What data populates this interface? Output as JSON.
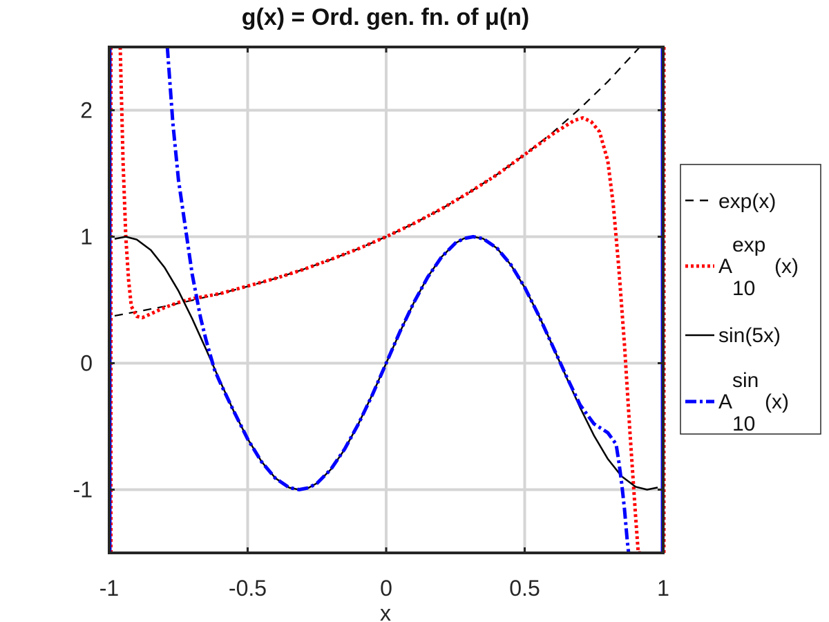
{
  "chart_data": {
    "type": "line",
    "title": "g(x) = Ord. gen. fn. of μ(n)",
    "xlabel": "x",
    "ylabel": "",
    "xlim": [
      -1,
      1
    ],
    "ylim": [
      -1.5,
      2.5
    ],
    "xticks": [
      -1,
      -0.5,
      0,
      0.5,
      1
    ],
    "xtick_labels": [
      "-1",
      "-0.5",
      "0",
      "0.5",
      "1"
    ],
    "yticks": [
      -1,
      0,
      1,
      2
    ],
    "ytick_labels": [
      "-1",
      "0",
      "1",
      "2"
    ],
    "grid": true,
    "legend_position": "outside-right",
    "series": [
      {
        "name": "exp(x)",
        "legend_main": "exp(x)",
        "style": "dashed",
        "color": "#000000",
        "x": [
          -0.98,
          -0.9,
          -0.8,
          -0.7,
          -0.6,
          -0.5,
          -0.4,
          -0.3,
          -0.2,
          -0.1,
          0,
          0.1,
          0.2,
          0.3,
          0.4,
          0.5,
          0.6,
          0.7,
          0.8,
          0.92
        ],
        "y": [
          0.375,
          0.407,
          0.449,
          0.497,
          0.549,
          0.607,
          0.67,
          0.741,
          0.819,
          0.905,
          1.0,
          1.105,
          1.221,
          1.35,
          1.492,
          1.649,
          1.822,
          2.014,
          2.226,
          2.51
        ]
      },
      {
        "name": "A10exp(x)",
        "legend_main": "A",
        "legend_sup": "exp",
        "legend_sub": "10",
        "legend_after": "(x)",
        "style": "dotted",
        "color": "#ff0000",
        "x": [
          -0.96,
          -0.95,
          -0.94,
          -0.93,
          -0.92,
          -0.9,
          -0.88,
          -0.86,
          -0.84,
          -0.8,
          -0.75,
          -0.7,
          -0.6,
          -0.5,
          -0.4,
          -0.3,
          -0.2,
          -0.1,
          0,
          0.1,
          0.2,
          0.3,
          0.4,
          0.5,
          0.6,
          0.65,
          0.68,
          0.71,
          0.74,
          0.77,
          0.8,
          0.82,
          0.84,
          0.86,
          0.88,
          0.9,
          0.91,
          0.92
        ],
        "y": [
          2.5,
          1.6,
          1.0,
          0.66,
          0.45,
          0.37,
          0.36,
          0.38,
          0.4,
          0.44,
          0.48,
          0.51,
          0.55,
          0.61,
          0.67,
          0.74,
          0.82,
          0.905,
          1.0,
          1.105,
          1.22,
          1.35,
          1.49,
          1.65,
          1.81,
          1.88,
          1.92,
          1.94,
          1.91,
          1.83,
          1.6,
          1.25,
          0.75,
          0.15,
          -0.55,
          -1.2,
          -1.5,
          -1.5
        ]
      },
      {
        "name": "sin(5x)",
        "legend_main": "sin(5x)",
        "style": "solid",
        "color": "#000000",
        "x": [
          -0.98,
          -0.94,
          -0.9,
          -0.85,
          -0.8,
          -0.75,
          -0.7,
          -0.65,
          -0.6,
          -0.55,
          -0.5,
          -0.45,
          -0.4,
          -0.35,
          -0.314,
          -0.28,
          -0.25,
          -0.2,
          -0.15,
          -0.1,
          -0.05,
          0,
          0.05,
          0.1,
          0.15,
          0.2,
          0.25,
          0.28,
          0.314,
          0.35,
          0.4,
          0.45,
          0.5,
          0.55,
          0.6,
          0.65,
          0.7,
          0.75,
          0.8,
          0.85,
          0.9,
          0.942,
          0.98
        ],
        "y": [
          0.983,
          1.0,
          0.977,
          0.895,
          0.757,
          0.572,
          0.351,
          0.108,
          -0.141,
          -0.381,
          -0.598,
          -0.778,
          -0.909,
          -0.984,
          -1.0,
          -0.985,
          -0.949,
          -0.841,
          -0.682,
          -0.479,
          -0.247,
          0,
          0.247,
          0.479,
          0.682,
          0.841,
          0.949,
          0.985,
          1.0,
          0.984,
          0.909,
          0.778,
          0.598,
          0.381,
          0.141,
          -0.108,
          -0.351,
          -0.572,
          -0.757,
          -0.895,
          -0.977,
          -1.0,
          -0.983
        ]
      },
      {
        "name": "A10sin(x)",
        "legend_main": "A",
        "legend_sup": "sin",
        "legend_sub": "10",
        "legend_after": "(x)",
        "style": "dashdot",
        "color": "#0000ff",
        "x": [
          -0.79,
          -0.77,
          -0.75,
          -0.72,
          -0.7,
          -0.67,
          -0.65,
          -0.62,
          -0.6,
          -0.55,
          -0.5,
          -0.45,
          -0.4,
          -0.35,
          -0.314,
          -0.28,
          -0.25,
          -0.2,
          -0.15,
          -0.1,
          -0.05,
          0,
          0.05,
          0.1,
          0.15,
          0.2,
          0.25,
          0.28,
          0.314,
          0.35,
          0.4,
          0.45,
          0.5,
          0.55,
          0.6,
          0.65,
          0.7,
          0.75,
          0.8,
          0.83,
          0.84,
          0.85,
          0.86,
          0.87,
          0.875
        ],
        "y": [
          2.5,
          1.9,
          1.45,
          1.0,
          0.7,
          0.36,
          0.18,
          -0.05,
          -0.15,
          -0.38,
          -0.6,
          -0.78,
          -0.91,
          -0.984,
          -1.0,
          -0.985,
          -0.95,
          -0.84,
          -0.68,
          -0.48,
          -0.25,
          0,
          0.25,
          0.48,
          0.68,
          0.84,
          0.95,
          0.985,
          1.0,
          0.984,
          0.91,
          0.78,
          0.6,
          0.38,
          0.14,
          -0.1,
          -0.33,
          -0.48,
          -0.55,
          -0.64,
          -0.78,
          -0.95,
          -1.15,
          -1.4,
          -1.5
        ]
      }
    ]
  }
}
